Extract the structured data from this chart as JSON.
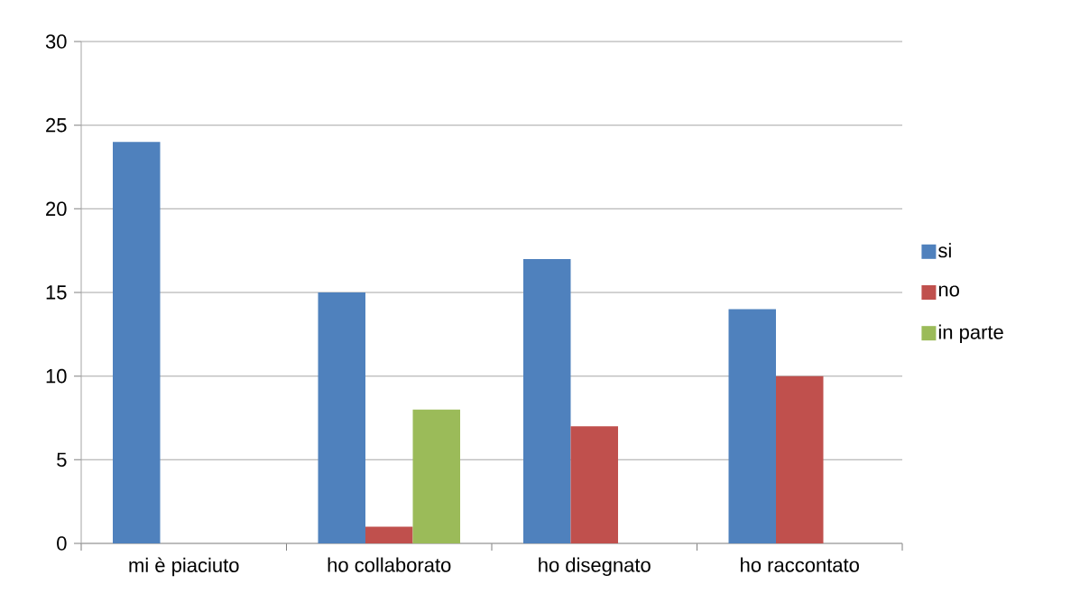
{
  "chart_data": {
    "type": "bar",
    "categories": [
      "mi è piaciuto",
      "ho collaborato",
      "ho disegnato",
      "ho raccontato"
    ],
    "series": [
      {
        "name": "si",
        "color": "#4f81bd",
        "values": [
          24,
          15,
          17,
          14
        ]
      },
      {
        "name": "no",
        "color": "#c0504d",
        "values": [
          null,
          1,
          7,
          10
        ]
      },
      {
        "name": "in parte",
        "color": "#9bbb59",
        "values": [
          null,
          8,
          null,
          null
        ]
      }
    ],
    "ylim": [
      0,
      30
    ],
    "yticks": [
      0,
      5,
      10,
      15,
      20,
      25,
      30
    ],
    "grid": "y",
    "legend": "right"
  }
}
